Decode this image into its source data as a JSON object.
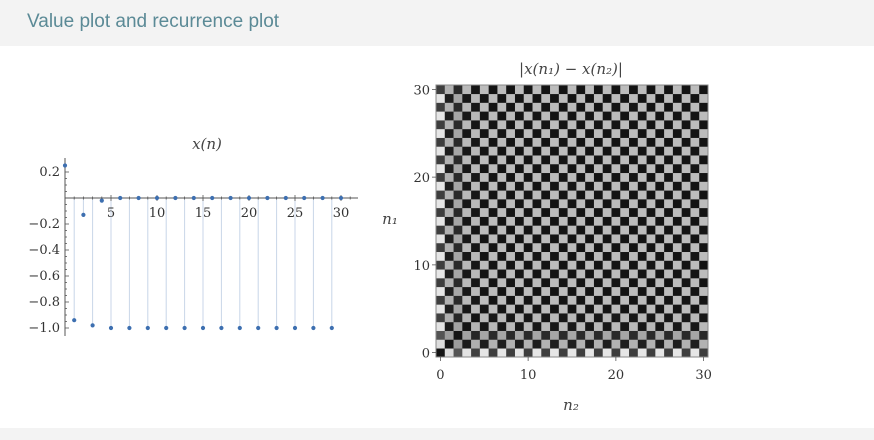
{
  "header": {
    "title": "Value plot and recurrence plot"
  },
  "colors": {
    "header_text": "#5b8a96",
    "point": "#3d6fb0",
    "stem": "#c8d6e8",
    "dark": "#1a1a1a",
    "mid": "#7a7a7a",
    "light": "#e6e6e6"
  },
  "chart_data": [
    {
      "type": "scatter",
      "title": "x(n)",
      "xlabel": "",
      "ylabel": "",
      "xlim": [
        0,
        31
      ],
      "ylim": [
        -1.05,
        0.28
      ],
      "x_ticks": [
        "5",
        "10",
        "15",
        "20",
        "25",
        "30"
      ],
      "y_ticks": [
        "0.2",
        "−0.2",
        "−0.4",
        "−0.6",
        "−0.8",
        "−1.0"
      ],
      "grid": false,
      "filling": "stems to axis",
      "series": [
        {
          "x": [
            0,
            1,
            2,
            3,
            4,
            5,
            6,
            7,
            8,
            9,
            10,
            11,
            12,
            13,
            14,
            15,
            16,
            17,
            18,
            19,
            20,
            21,
            22,
            23,
            24,
            25,
            26,
            27,
            28,
            29,
            30
          ],
          "values": [
            0.25,
            -0.94,
            -0.13,
            -0.98,
            -0.02,
            -1.0,
            0.0,
            -1.0,
            0.0,
            -1.0,
            0.0,
            -1.0,
            0.0,
            -1.0,
            0.0,
            -1.0,
            0.0,
            -1.0,
            0.0,
            -1.0,
            0.0,
            -1.0,
            0.0,
            -1.0,
            0.0,
            -1.0,
            0.0,
            -1.0,
            0.0,
            -1.0,
            0.0
          ]
        }
      ]
    },
    {
      "type": "heatmap",
      "title": "|x(n₁) − x(n₂)|",
      "xlabel": "n₂",
      "ylabel": "n₁",
      "xlim": [
        0,
        31
      ],
      "ylim": [
        0,
        31
      ],
      "x_ticks": [
        "0",
        "10",
        "20",
        "30"
      ],
      "y_ticks": [
        "0",
        "10",
        "20",
        "30"
      ],
      "n_cells": 31,
      "x_values": [
        0.25,
        -0.94,
        -0.13,
        -0.98,
        -0.02,
        -1.0,
        0.0,
        -1.0,
        0.0,
        -1.0,
        0.0,
        -1.0,
        0.0,
        -1.0,
        0.0,
        -1.0,
        0.0,
        -1.0,
        0.0,
        -1.0,
        0.0,
        -1.0,
        0.0,
        -1.0,
        0.0,
        -1.0,
        0.0,
        -1.0,
        0.0,
        -1.0,
        0.0
      ],
      "colormap": "grayscale, 0 = black, max = light gray"
    }
  ]
}
